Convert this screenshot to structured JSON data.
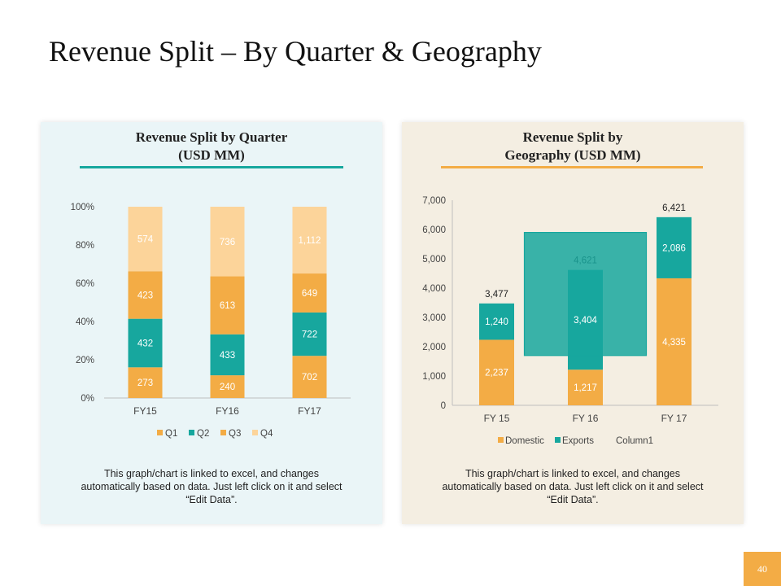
{
  "page": {
    "title": "Revenue Split – By Quarter & Geography",
    "page_number": "40"
  },
  "colors": {
    "q1": "#f3ac45",
    "q2": "#17a79e",
    "q3": "#f3ac45",
    "q4": "#fcd49a",
    "domestic": "#f3ac45",
    "exports": "#17a79e",
    "highlight_box": "#17a79e"
  },
  "left_panel": {
    "title_line1": "Revenue Split by Quarter",
    "title_line2": "(USD MM)",
    "note": "This graph/chart is linked to excel, and changes automatically based on data. Just left click on it and select “Edit Data”."
  },
  "right_panel": {
    "title_line1": "Revenue Split by",
    "title_line2": "Geography (USD MM)",
    "note": "This graph/chart is linked to excel, and changes automatically based on data. Just left click on it and select “Edit Data”."
  },
  "chart_data": [
    {
      "type": "bar",
      "stacking": "percent",
      "title": "Revenue Split by Quarter (USD MM)",
      "categories": [
        "FY15",
        "FY16",
        "FY17"
      ],
      "series": [
        {
          "name": "Q1",
          "values": [
            273,
            240,
            702
          ],
          "labels": [
            "273",
            "240",
            "702"
          ]
        },
        {
          "name": "Q2",
          "values": [
            432,
            433,
            722
          ],
          "labels": [
            "432",
            "433",
            "722"
          ]
        },
        {
          "name": "Q3",
          "values": [
            423,
            613,
            649
          ],
          "labels": [
            "423",
            "613",
            "649"
          ]
        },
        {
          "name": "Q4",
          "values": [
            574,
            736,
            1112
          ],
          "labels": [
            "574",
            "736",
            "1,112"
          ]
        }
      ],
      "y_ticks": [
        "0%",
        "20%",
        "40%",
        "60%",
        "80%",
        "100%"
      ],
      "ylim": [
        0,
        100
      ],
      "legend": "bottom"
    },
    {
      "type": "bar",
      "stacking": "stacked",
      "title": "Revenue Split by Geography (USD MM)",
      "categories": [
        "FY 15",
        "FY 16",
        "FY 17"
      ],
      "series": [
        {
          "name": "Domestic",
          "values": [
            2237,
            1217,
            4335
          ],
          "labels": [
            "2,237",
            "1,217",
            "4,335"
          ]
        },
        {
          "name": "Exports",
          "values": [
            1240,
            3404,
            2086
          ],
          "labels": [
            "1,240",
            "3,404",
            "2,086"
          ]
        },
        {
          "name": "Column1",
          "values": [
            0,
            0,
            0
          ],
          "labels": [
            "",
            "",
            ""
          ]
        }
      ],
      "totals": [
        3477,
        4621,
        6421
      ],
      "total_labels": [
        "3,477",
        "4,621",
        "6,421"
      ],
      "y_ticks": [
        "0",
        "1,000",
        "2,000",
        "3,000",
        "4,000",
        "5,000",
        "6,000",
        "7,000"
      ],
      "ylim": [
        0,
        7000
      ],
      "highlight": {
        "category": "FY 16",
        "value_range": [
          1700,
          5900
        ]
      },
      "legend": "bottom"
    }
  ]
}
